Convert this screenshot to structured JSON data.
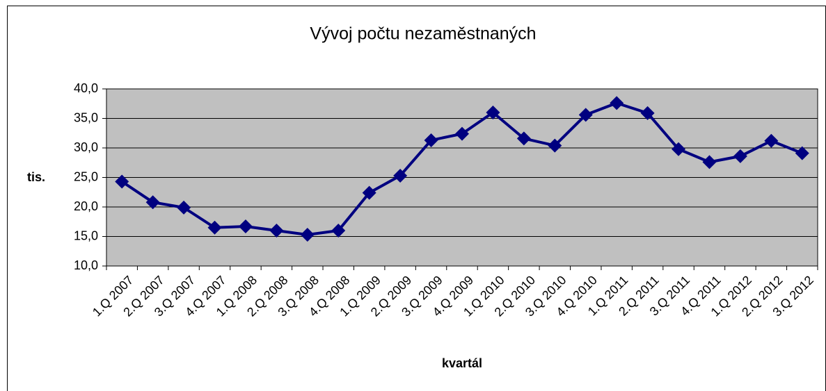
{
  "chart_data": {
    "type": "line",
    "title": "Vývoj počtu nezaměstnaných",
    "x_label": "kvartál",
    "y_label": "tis.",
    "categories": [
      "1.Q 2007",
      "2.Q 2007",
      "3.Q 2007",
      "4.Q 2007",
      "1.Q 2008",
      "2.Q 2008",
      "3.Q 2008",
      "4.Q 2008",
      "1.Q 2009",
      "2.Q 2009",
      "3.Q 2009",
      "4.Q 2009",
      "1.Q 2010",
      "2.Q 2010",
      "3.Q 2010",
      "4.Q 2010",
      "1.Q 2011",
      "2.Q 2011",
      "3.Q 2011",
      "4.Q 2011",
      "1.Q 2012",
      "2.Q 2012",
      "3.Q 2012"
    ],
    "series": [
      {
        "color": "#000080",
        "values": [
          24.3,
          20.8,
          19.9,
          16.5,
          16.7,
          16.0,
          15.3,
          16.0,
          22.4,
          25.3,
          31.3,
          32.4,
          36.0,
          31.6,
          30.4,
          35.6,
          37.6,
          35.9,
          29.8,
          27.6,
          28.6,
          31.2,
          29.1
        ]
      }
    ],
    "ylim": [
      10,
      40
    ],
    "yticks": [
      {
        "value": 10,
        "label": "10,0"
      },
      {
        "value": 15,
        "label": "15,0"
      },
      {
        "value": 20,
        "label": "20,0"
      },
      {
        "value": 25,
        "label": "25,0"
      },
      {
        "value": 30,
        "label": "30,0"
      },
      {
        "value": 35,
        "label": "35,0"
      },
      {
        "value": 40,
        "label": "40,0"
      }
    ],
    "grid": true,
    "plot_background": "#c0c0c0"
  }
}
